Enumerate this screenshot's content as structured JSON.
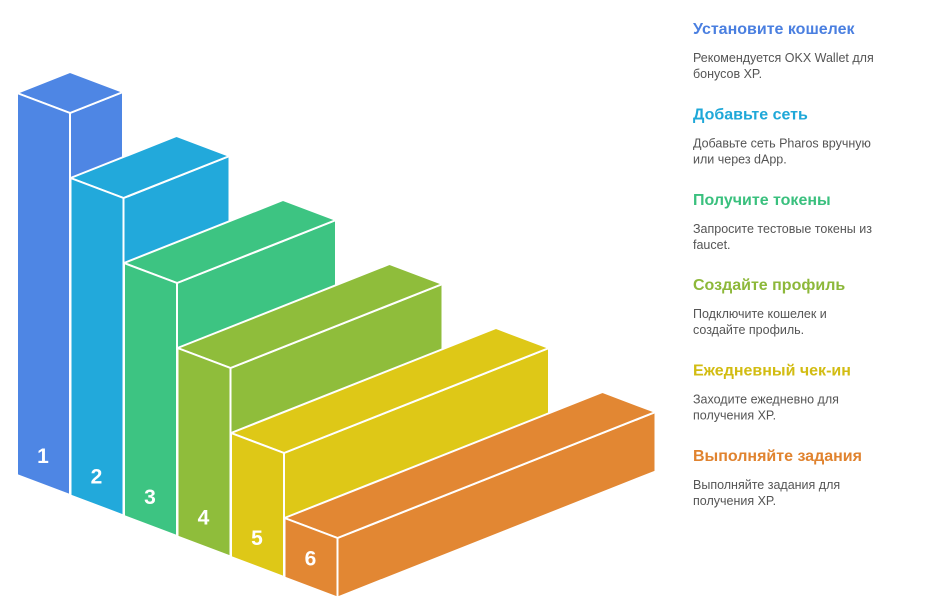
{
  "steps": [
    {
      "number": "1",
      "title": "Установите кошелек",
      "description": [
        "Рекомендуется OKX Wallet для",
        "бонусов XP."
      ]
    },
    {
      "number": "2",
      "title": "Добавьте сеть",
      "description": [
        "Добавьте сеть Pharos вручную",
        "или через dApp."
      ]
    },
    {
      "number": "3",
      "title": "Получите токены",
      "description": [
        "Запросите тестовые токены из",
        "faucet."
      ]
    },
    {
      "number": "4",
      "title": "Создайте профиль",
      "description": [
        "Подключите кошелек и",
        "создайте профиль."
      ]
    },
    {
      "number": "5",
      "title": "Ежедневный чек-ин",
      "description": [
        "Заходите ежедневно для",
        "получения XP."
      ]
    },
    {
      "number": "6",
      "title": "Выполняйте задания",
      "description": [
        "Выполняйте задания для",
        "получения XP."
      ]
    }
  ]
}
